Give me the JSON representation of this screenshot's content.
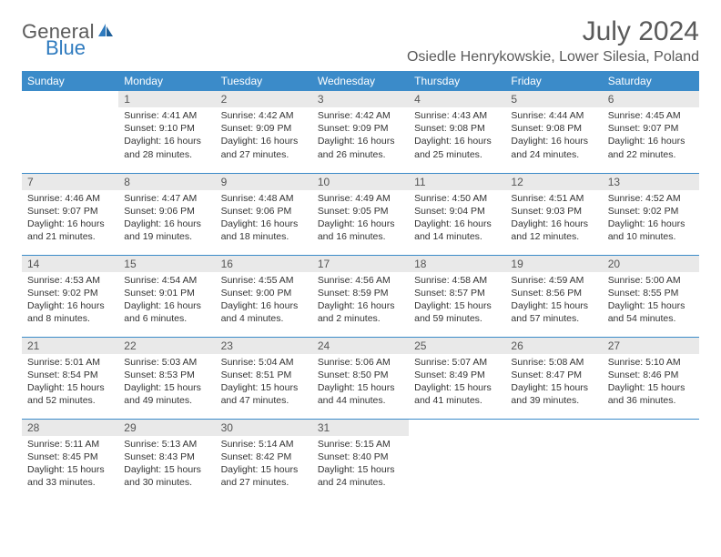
{
  "colors": {
    "header_bg": "#3b8bc9",
    "header_text": "#ffffff",
    "daynum_bg": "#e9e9e9",
    "daynum_text": "#555555",
    "body_text": "#333333",
    "title_text": "#5a5a5a",
    "logo_blue": "#2f7bbf",
    "row_border": "#3b8bc9",
    "page_bg": "#ffffff"
  },
  "typography": {
    "title_fontsize": 30,
    "location_fontsize": 16,
    "dayhead_fontsize": 12,
    "daynum_fontsize": 12,
    "cell_fontsize": 10.5
  },
  "logo": {
    "text1": "General",
    "text2": "Blue"
  },
  "title": "July 2024",
  "location": "Osiedle Henrykowskie, Lower Silesia, Poland",
  "day_headers": [
    "Sunday",
    "Monday",
    "Tuesday",
    "Wednesday",
    "Thursday",
    "Friday",
    "Saturday"
  ],
  "weeks": [
    [
      null,
      {
        "n": "1",
        "sr": "Sunrise: 4:41 AM",
        "ss": "Sunset: 9:10 PM",
        "dl": "Daylight: 16 hours and 28 minutes."
      },
      {
        "n": "2",
        "sr": "Sunrise: 4:42 AM",
        "ss": "Sunset: 9:09 PM",
        "dl": "Daylight: 16 hours and 27 minutes."
      },
      {
        "n": "3",
        "sr": "Sunrise: 4:42 AM",
        "ss": "Sunset: 9:09 PM",
        "dl": "Daylight: 16 hours and 26 minutes."
      },
      {
        "n": "4",
        "sr": "Sunrise: 4:43 AM",
        "ss": "Sunset: 9:08 PM",
        "dl": "Daylight: 16 hours and 25 minutes."
      },
      {
        "n": "5",
        "sr": "Sunrise: 4:44 AM",
        "ss": "Sunset: 9:08 PM",
        "dl": "Daylight: 16 hours and 24 minutes."
      },
      {
        "n": "6",
        "sr": "Sunrise: 4:45 AM",
        "ss": "Sunset: 9:07 PM",
        "dl": "Daylight: 16 hours and 22 minutes."
      }
    ],
    [
      {
        "n": "7",
        "sr": "Sunrise: 4:46 AM",
        "ss": "Sunset: 9:07 PM",
        "dl": "Daylight: 16 hours and 21 minutes."
      },
      {
        "n": "8",
        "sr": "Sunrise: 4:47 AM",
        "ss": "Sunset: 9:06 PM",
        "dl": "Daylight: 16 hours and 19 minutes."
      },
      {
        "n": "9",
        "sr": "Sunrise: 4:48 AM",
        "ss": "Sunset: 9:06 PM",
        "dl": "Daylight: 16 hours and 18 minutes."
      },
      {
        "n": "10",
        "sr": "Sunrise: 4:49 AM",
        "ss": "Sunset: 9:05 PM",
        "dl": "Daylight: 16 hours and 16 minutes."
      },
      {
        "n": "11",
        "sr": "Sunrise: 4:50 AM",
        "ss": "Sunset: 9:04 PM",
        "dl": "Daylight: 16 hours and 14 minutes."
      },
      {
        "n": "12",
        "sr": "Sunrise: 4:51 AM",
        "ss": "Sunset: 9:03 PM",
        "dl": "Daylight: 16 hours and 12 minutes."
      },
      {
        "n": "13",
        "sr": "Sunrise: 4:52 AM",
        "ss": "Sunset: 9:02 PM",
        "dl": "Daylight: 16 hours and 10 minutes."
      }
    ],
    [
      {
        "n": "14",
        "sr": "Sunrise: 4:53 AM",
        "ss": "Sunset: 9:02 PM",
        "dl": "Daylight: 16 hours and 8 minutes."
      },
      {
        "n": "15",
        "sr": "Sunrise: 4:54 AM",
        "ss": "Sunset: 9:01 PM",
        "dl": "Daylight: 16 hours and 6 minutes."
      },
      {
        "n": "16",
        "sr": "Sunrise: 4:55 AM",
        "ss": "Sunset: 9:00 PM",
        "dl": "Daylight: 16 hours and 4 minutes."
      },
      {
        "n": "17",
        "sr": "Sunrise: 4:56 AM",
        "ss": "Sunset: 8:59 PM",
        "dl": "Daylight: 16 hours and 2 minutes."
      },
      {
        "n": "18",
        "sr": "Sunrise: 4:58 AM",
        "ss": "Sunset: 8:57 PM",
        "dl": "Daylight: 15 hours and 59 minutes."
      },
      {
        "n": "19",
        "sr": "Sunrise: 4:59 AM",
        "ss": "Sunset: 8:56 PM",
        "dl": "Daylight: 15 hours and 57 minutes."
      },
      {
        "n": "20",
        "sr": "Sunrise: 5:00 AM",
        "ss": "Sunset: 8:55 PM",
        "dl": "Daylight: 15 hours and 54 minutes."
      }
    ],
    [
      {
        "n": "21",
        "sr": "Sunrise: 5:01 AM",
        "ss": "Sunset: 8:54 PM",
        "dl": "Daylight: 15 hours and 52 minutes."
      },
      {
        "n": "22",
        "sr": "Sunrise: 5:03 AM",
        "ss": "Sunset: 8:53 PM",
        "dl": "Daylight: 15 hours and 49 minutes."
      },
      {
        "n": "23",
        "sr": "Sunrise: 5:04 AM",
        "ss": "Sunset: 8:51 PM",
        "dl": "Daylight: 15 hours and 47 minutes."
      },
      {
        "n": "24",
        "sr": "Sunrise: 5:06 AM",
        "ss": "Sunset: 8:50 PM",
        "dl": "Daylight: 15 hours and 44 minutes."
      },
      {
        "n": "25",
        "sr": "Sunrise: 5:07 AM",
        "ss": "Sunset: 8:49 PM",
        "dl": "Daylight: 15 hours and 41 minutes."
      },
      {
        "n": "26",
        "sr": "Sunrise: 5:08 AM",
        "ss": "Sunset: 8:47 PM",
        "dl": "Daylight: 15 hours and 39 minutes."
      },
      {
        "n": "27",
        "sr": "Sunrise: 5:10 AM",
        "ss": "Sunset: 8:46 PM",
        "dl": "Daylight: 15 hours and 36 minutes."
      }
    ],
    [
      {
        "n": "28",
        "sr": "Sunrise: 5:11 AM",
        "ss": "Sunset: 8:45 PM",
        "dl": "Daylight: 15 hours and 33 minutes."
      },
      {
        "n": "29",
        "sr": "Sunrise: 5:13 AM",
        "ss": "Sunset: 8:43 PM",
        "dl": "Daylight: 15 hours and 30 minutes."
      },
      {
        "n": "30",
        "sr": "Sunrise: 5:14 AM",
        "ss": "Sunset: 8:42 PM",
        "dl": "Daylight: 15 hours and 27 minutes."
      },
      {
        "n": "31",
        "sr": "Sunrise: 5:15 AM",
        "ss": "Sunset: 8:40 PM",
        "dl": "Daylight: 15 hours and 24 minutes."
      },
      null,
      null,
      null
    ]
  ]
}
